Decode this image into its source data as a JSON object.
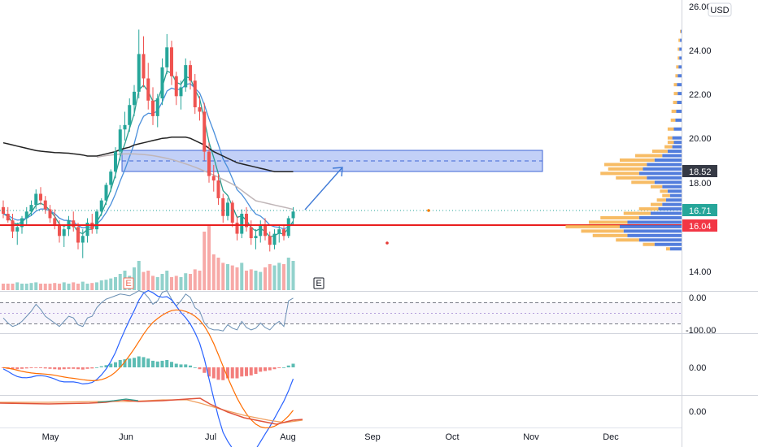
{
  "currency": "USD",
  "y_axis_ticks": [
    "26.00",
    "24.00",
    "22.00",
    "20.00",
    "18.00",
    "14.00"
  ],
  "x_axis_months": [
    "May",
    "Jun",
    "Jul",
    "Aug",
    "Sep",
    "Oct",
    "Nov",
    "Dec"
  ],
  "price_tags": {
    "resistance": {
      "value": "18.52",
      "color": "#363a45"
    },
    "last_price": {
      "value": "16.71",
      "color": "#26a69a"
    },
    "support": {
      "value": "16.04",
      "color": "#f23645"
    }
  },
  "earnings_markers": [
    "E",
    "E"
  ],
  "oscillator_ticks": [
    "0.00",
    "-100.00"
  ],
  "macd_ticks": [
    "0.00"
  ],
  "third_pane_ticks": [
    "0.00"
  ],
  "colors": {
    "up": "#26a69a",
    "down": "#ef5350",
    "ema_fast": "#2a9d8f",
    "ema_mid": "#4a8fdb",
    "sma_long": "#222222",
    "sma_gray": "#c0b6b8",
    "zone_fill": "#8fa9f0",
    "zone_border": "#3f66d6",
    "support_line": "#e91e1e",
    "volume_profile_up": "#3f6fd8",
    "volume_profile_down": "#f6b04a"
  },
  "chart_data": {
    "type": "candlestick",
    "ylim": [
      13.4,
      26.0
    ],
    "support_level": 16.04,
    "last_price": 16.71,
    "resistance_zone": [
      18.52,
      19.42
    ],
    "projected_target": 18.7,
    "candles": [
      [
        16.9,
        17.2,
        16.4,
        16.6
      ],
      [
        16.6,
        16.9,
        16.2,
        16.3
      ],
      [
        16.3,
        16.6,
        15.5,
        15.8
      ],
      [
        15.8,
        16.2,
        15.2,
        16.0
      ],
      [
        16.0,
        16.5,
        15.7,
        16.4
      ],
      [
        16.4,
        16.9,
        16.1,
        16.7
      ],
      [
        16.7,
        17.2,
        16.5,
        17.0
      ],
      [
        17.0,
        17.7,
        16.8,
        17.5
      ],
      [
        17.5,
        17.8,
        17.0,
        17.2
      ],
      [
        17.2,
        17.4,
        16.6,
        16.8
      ],
      [
        16.8,
        17.0,
        16.2,
        16.4
      ],
      [
        16.4,
        16.8,
        15.9,
        16.1
      ],
      [
        16.1,
        16.3,
        15.3,
        15.6
      ],
      [
        15.6,
        16.0,
        15.1,
        15.9
      ],
      [
        15.9,
        16.5,
        15.6,
        16.3
      ],
      [
        16.3,
        16.7,
        15.8,
        16.0
      ],
      [
        16.0,
        16.2,
        15.0,
        15.3
      ],
      [
        15.3,
        15.9,
        14.6,
        15.6
      ],
      [
        15.6,
        16.4,
        15.3,
        16.2
      ],
      [
        16.2,
        16.6,
        15.7,
        15.9
      ],
      [
        15.9,
        16.8,
        15.7,
        16.7
      ],
      [
        16.7,
        17.3,
        16.5,
        17.2
      ],
      [
        17.2,
        18.0,
        17.0,
        17.9
      ],
      [
        17.9,
        18.6,
        17.6,
        18.5
      ],
      [
        18.5,
        19.6,
        18.2,
        19.4
      ],
      [
        19.4,
        20.6,
        19.0,
        20.4
      ],
      [
        20.4,
        21.2,
        19.9,
        20.6
      ],
      [
        20.6,
        21.8,
        20.3,
        21.5
      ],
      [
        21.5,
        22.4,
        21.0,
        22.1
      ],
      [
        22.1,
        24.9,
        21.8,
        23.8
      ],
      [
        23.8,
        24.6,
        22.3,
        22.7
      ],
      [
        22.7,
        23.4,
        21.3,
        21.7
      ],
      [
        21.7,
        22.3,
        20.6,
        21.0
      ],
      [
        21.0,
        22.0,
        20.5,
        21.8
      ],
      [
        21.8,
        23.6,
        21.5,
        23.2
      ],
      [
        23.2,
        24.7,
        22.9,
        24.1
      ],
      [
        24.1,
        24.4,
        22.4,
        22.8
      ],
      [
        22.8,
        23.0,
        21.5,
        21.9
      ],
      [
        21.9,
        22.6,
        21.3,
        22.3
      ],
      [
        22.3,
        23.6,
        22.1,
        23.3
      ],
      [
        23.3,
        23.5,
        22.2,
        22.6
      ],
      [
        22.6,
        22.9,
        21.1,
        21.4
      ],
      [
        21.4,
        21.9,
        20.8,
        21.2
      ],
      [
        21.2,
        21.6,
        19.0,
        19.4
      ],
      [
        19.4,
        19.8,
        18.0,
        18.3
      ],
      [
        18.3,
        18.8,
        17.6,
        18.1
      ],
      [
        18.1,
        18.4,
        17.0,
        17.3
      ],
      [
        17.3,
        17.5,
        16.2,
        16.5
      ],
      [
        16.5,
        17.3,
        16.3,
        17.1
      ],
      [
        17.1,
        17.2,
        16.0,
        16.2
      ],
      [
        16.2,
        16.5,
        15.4,
        15.7
      ],
      [
        15.7,
        16.8,
        15.5,
        16.6
      ],
      [
        16.6,
        16.9,
        15.8,
        16.0
      ],
      [
        16.0,
        16.3,
        15.2,
        15.5
      ],
      [
        15.5,
        15.9,
        15.0,
        15.6
      ],
      [
        15.6,
        16.3,
        15.3,
        16.1
      ],
      [
        16.1,
        16.4,
        15.4,
        15.6
      ],
      [
        15.6,
        15.8,
        14.9,
        15.2
      ],
      [
        15.2,
        15.9,
        15.0,
        15.7
      ],
      [
        15.7,
        16.1,
        15.3,
        15.9
      ],
      [
        15.9,
        16.1,
        15.4,
        15.6
      ],
      [
        15.6,
        16.5,
        15.5,
        16.4
      ],
      [
        16.4,
        16.9,
        16.1,
        16.7
      ]
    ],
    "volume": [
      0.1,
      0.1,
      0.1,
      0.12,
      0.1,
      0.1,
      0.11,
      0.12,
      0.1,
      0.1,
      0.1,
      0.11,
      0.1,
      0.12,
      0.1,
      0.12,
      0.1,
      0.13,
      0.1,
      0.11,
      0.12,
      0.15,
      0.16,
      0.18,
      0.2,
      0.25,
      0.3,
      0.22,
      0.35,
      0.45,
      0.28,
      0.3,
      0.22,
      0.2,
      0.25,
      0.3,
      0.2,
      0.22,
      0.2,
      0.26,
      0.25,
      0.32,
      0.3,
      0.9,
      1.0,
      0.55,
      0.5,
      0.42,
      0.4,
      0.38,
      0.35,
      0.42,
      0.3,
      0.32,
      0.3,
      0.28,
      0.35,
      0.4,
      0.38,
      0.42,
      0.4,
      0.5,
      0.45
    ],
    "volume_profile": [
      {
        "price": 15.0,
        "up": 0.15,
        "down": 0.05
      },
      {
        "price": 15.2,
        "up": 0.35,
        "down": 0.15
      },
      {
        "price": 15.4,
        "up": 0.55,
        "down": 0.3
      },
      {
        "price": 15.6,
        "up": 0.7,
        "down": 0.45
      },
      {
        "price": 15.8,
        "up": 0.75,
        "down": 0.55
      },
      {
        "price": 16.0,
        "up": 0.8,
        "down": 0.7
      },
      {
        "price": 16.2,
        "up": 0.7,
        "down": 0.5
      },
      {
        "price": 16.4,
        "up": 0.55,
        "down": 0.5
      },
      {
        "price": 16.6,
        "up": 0.4,
        "down": 0.35
      },
      {
        "price": 16.8,
        "up": 0.3,
        "down": 0.25
      },
      {
        "price": 17.0,
        "up": 0.25,
        "down": 0.15
      },
      {
        "price": 17.2,
        "up": 0.2,
        "down": 0.12
      },
      {
        "price": 17.4,
        "up": 0.15,
        "down": 0.1
      },
      {
        "price": 17.6,
        "up": 0.18,
        "down": 0.1
      },
      {
        "price": 17.8,
        "up": 0.25,
        "down": 0.15
      },
      {
        "price": 18.0,
        "up": 0.35,
        "down": 0.3
      },
      {
        "price": 18.2,
        "up": 0.45,
        "down": 0.4
      },
      {
        "price": 18.4,
        "up": 0.55,
        "down": 0.5
      },
      {
        "price": 18.6,
        "up": 0.5,
        "down": 0.45
      },
      {
        "price": 18.8,
        "up": 0.45,
        "down": 0.55
      },
      {
        "price": 19.0,
        "up": 0.35,
        "down": 0.45
      },
      {
        "price": 19.2,
        "up": 0.25,
        "down": 0.35
      },
      {
        "price": 19.4,
        "up": 0.18,
        "down": 0.2
      },
      {
        "price": 19.6,
        "up": 0.12,
        "down": 0.1
      },
      {
        "price": 19.8,
        "up": 0.1,
        "down": 0.08
      },
      {
        "price": 20.0,
        "up": 0.12,
        "down": 0.06
      },
      {
        "price": 20.4,
        "up": 0.1,
        "down": 0.08
      },
      {
        "price": 20.8,
        "up": 0.08,
        "down": 0.06
      },
      {
        "price": 21.2,
        "up": 0.07,
        "down": 0.06
      },
      {
        "price": 21.6,
        "up": 0.06,
        "down": 0.05
      },
      {
        "price": 22.0,
        "up": 0.05,
        "down": 0.05
      },
      {
        "price": 22.4,
        "up": 0.06,
        "down": 0.04
      },
      {
        "price": 22.8,
        "up": 0.05,
        "down": 0.03
      },
      {
        "price": 23.2,
        "up": 0.04,
        "down": 0.03
      },
      {
        "price": 23.6,
        "up": 0.03,
        "down": 0.02
      },
      {
        "price": 24.0,
        "up": 0.03,
        "down": 0.02
      },
      {
        "price": 24.4,
        "up": 0.02,
        "down": 0.02
      },
      {
        "price": 24.8,
        "up": 0.01,
        "down": 0.01
      }
    ],
    "oscillator": [
      -60,
      -75,
      -85,
      -80,
      -70,
      -55,
      -40,
      -20,
      -35,
      -55,
      -65,
      -75,
      -85,
      -70,
      -55,
      -60,
      -80,
      -85,
      -60,
      -55,
      -30,
      -15,
      -5,
      0,
      5,
      10,
      8,
      5,
      12,
      20,
      15,
      0,
      -20,
      -10,
      15,
      20,
      -5,
      -25,
      -10,
      10,
      0,
      -30,
      -40,
      -75,
      -90,
      -95,
      -95,
      -98,
      -80,
      -90,
      -95,
      -70,
      -88,
      -95,
      -90,
      -75,
      -88,
      -95,
      -80,
      -70,
      -85,
      -10,
      -2
    ],
    "macd_histogram": [
      -0.02,
      -0.04,
      -0.05,
      -0.05,
      -0.04,
      -0.03,
      -0.02,
      -0.01,
      -0.02,
      -0.03,
      -0.04,
      -0.05,
      -0.06,
      -0.05,
      -0.04,
      -0.04,
      -0.05,
      -0.06,
      -0.04,
      -0.03,
      0.0,
      0.03,
      0.06,
      0.1,
      0.14,
      0.2,
      0.22,
      0.24,
      0.26,
      0.3,
      0.28,
      0.24,
      0.18,
      0.16,
      0.18,
      0.2,
      0.15,
      0.1,
      0.08,
      0.08,
      0.05,
      0.0,
      -0.05,
      -0.15,
      -0.25,
      -0.3,
      -0.34,
      -0.35,
      -0.3,
      -0.3,
      -0.3,
      -0.25,
      -0.24,
      -0.22,
      -0.18,
      -0.12,
      -0.1,
      -0.08,
      -0.05,
      -0.02,
      0.0,
      0.05,
      0.1
    ]
  }
}
